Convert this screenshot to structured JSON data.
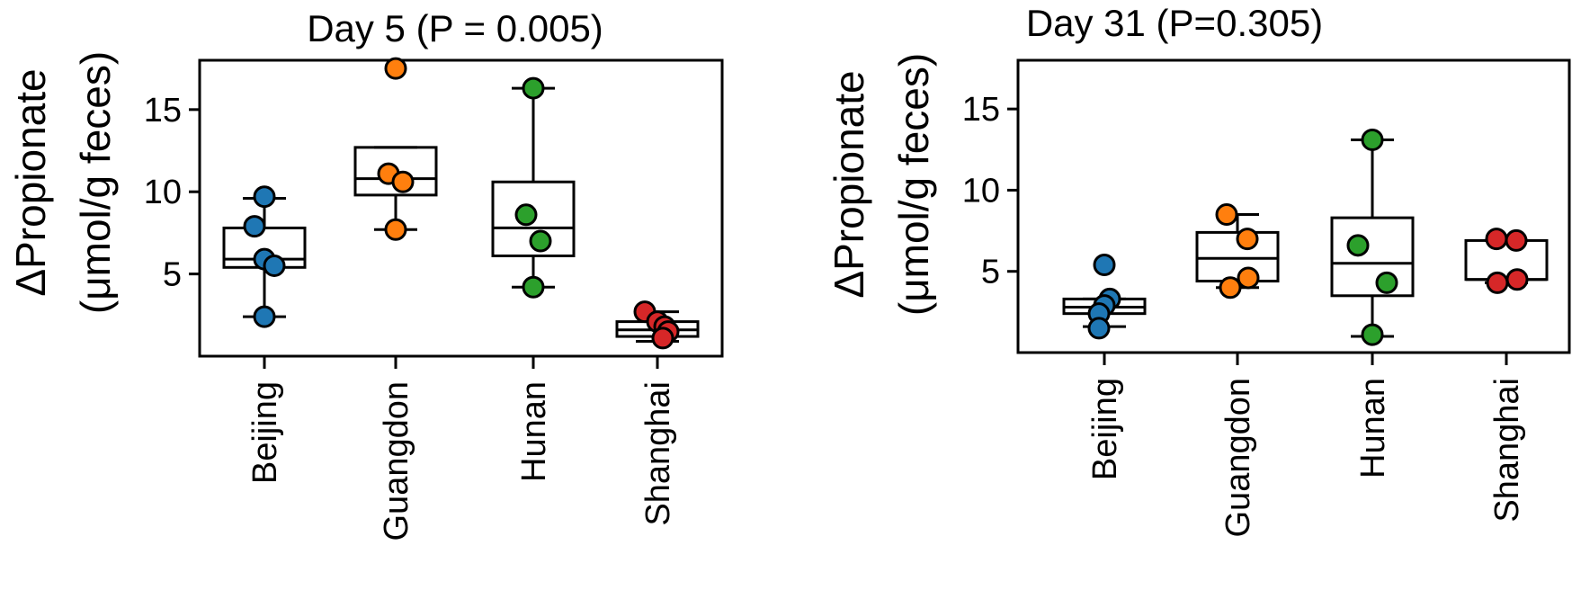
{
  "figure": {
    "panels": [
      {
        "title": "Day 5 (P = 0.005)",
        "ylabel_line1": "ΔPropionate",
        "ylabel_line2": "(μmol/g feces)"
      },
      {
        "title": "Day 31 (P=0.305)",
        "ylabel_line1": "ΔPropionate",
        "ylabel_line2": "(μmol/g feces)"
      }
    ]
  },
  "chart_data": [
    {
      "type": "box",
      "title": "Day 5 (P = 0.005)",
      "ylabel": "ΔPropionate (μmol/g feces)",
      "xlabel": "",
      "ylim": [
        0,
        18
      ],
      "yticks": [
        5,
        10,
        15
      ],
      "grid": false,
      "categories": [
        "Beijing",
        "Guangdon",
        "Hunan",
        "Shanghai"
      ],
      "colors": [
        "#1f77b4",
        "#ff7f0e",
        "#2ca02c",
        "#d62728"
      ],
      "boxes": [
        {
          "category": "Beijing",
          "whisker_low": 2.4,
          "q1": 5.4,
          "median": 5.9,
          "q3": 7.8,
          "whisker_high": 9.6
        },
        {
          "category": "Guangdon",
          "whisker_low": 7.7,
          "q1": 9.8,
          "median": 10.8,
          "q3": 12.7,
          "whisker_high": 12.7
        },
        {
          "category": "Hunan",
          "whisker_low": 4.2,
          "q1": 6.1,
          "median": 7.8,
          "q3": 10.6,
          "whisker_high": 16.3
        },
        {
          "category": "Shanghai",
          "whisker_low": 0.9,
          "q1": 1.2,
          "median": 1.6,
          "q3": 2.1,
          "whisker_high": 2.7
        }
      ],
      "points": [
        {
          "category": "Beijing",
          "values": [
            9.7,
            7.9,
            5.9,
            5.5,
            2.4
          ]
        },
        {
          "category": "Guangdon",
          "values": [
            17.5,
            11.1,
            10.6,
            7.7
          ]
        },
        {
          "category": "Hunan",
          "values": [
            16.3,
            8.6,
            7.0,
            4.2
          ]
        },
        {
          "category": "Shanghai",
          "values": [
            2.7,
            2.1,
            1.8,
            1.5,
            1.1
          ]
        }
      ]
    },
    {
      "type": "box",
      "title": "Day 31 (P=0.305)",
      "ylabel": "ΔPropionate (μmol/g feces)",
      "xlabel": "",
      "ylim": [
        0,
        18
      ],
      "yticks": [
        5,
        10,
        15
      ],
      "grid": false,
      "categories": [
        "Beijing",
        "Guangdon",
        "Hunan",
        "Shanghai"
      ],
      "colors": [
        "#1f77b4",
        "#ff7f0e",
        "#2ca02c",
        "#d62728"
      ],
      "boxes": [
        {
          "category": "Beijing",
          "whisker_low": 1.6,
          "q1": 2.4,
          "median": 2.8,
          "q3": 3.3,
          "whisker_high": 3.3
        },
        {
          "category": "Guangdon",
          "whisker_low": 4.0,
          "q1": 4.4,
          "median": 5.8,
          "q3": 7.4,
          "whisker_high": 8.5
        },
        {
          "category": "Hunan",
          "whisker_low": 1.0,
          "q1": 3.5,
          "median": 5.5,
          "q3": 8.3,
          "whisker_high": 13.1
        },
        {
          "category": "Shanghai",
          "whisker_low": 4.3,
          "q1": 4.5,
          "median": 4.5,
          "q3": 6.9,
          "whisker_high": 6.9
        }
      ],
      "points": [
        {
          "category": "Beijing",
          "values": [
            5.4,
            3.3,
            2.9,
            2.4,
            1.5
          ]
        },
        {
          "category": "Guangdon",
          "values": [
            8.5,
            7.0,
            4.6,
            4.0
          ]
        },
        {
          "category": "Hunan",
          "values": [
            13.1,
            6.6,
            4.3,
            1.1
          ]
        },
        {
          "category": "Shanghai",
          "values": [
            7.0,
            6.9,
            4.5,
            4.3
          ]
        }
      ]
    }
  ]
}
